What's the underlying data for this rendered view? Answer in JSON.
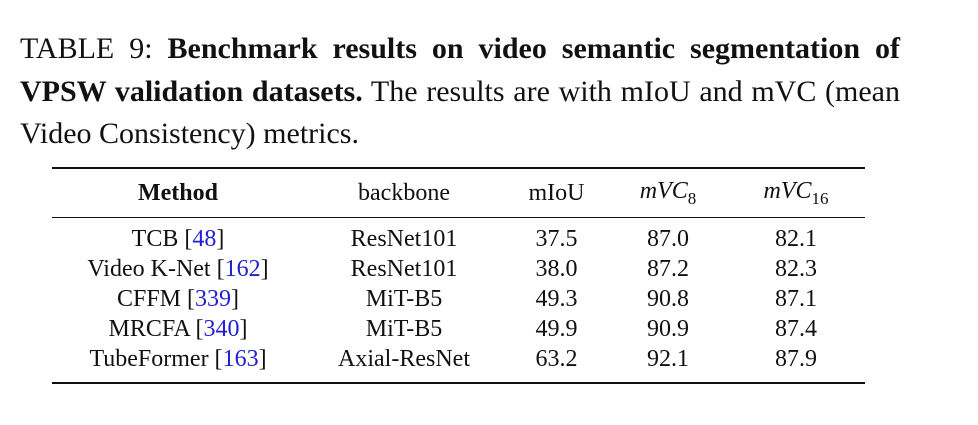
{
  "caption": {
    "label": "TABLE 9: ",
    "bold": "Benchmark results on video semantic segmen­tation of VPSW validation datasets.",
    "rest": " The results are with mIoU and mVC (mean Video Consistency) metrics."
  },
  "table": {
    "header": [
      {
        "text": "Method",
        "style": "bold"
      },
      {
        "text": "backbone"
      },
      {
        "text": "mIoU"
      },
      {
        "text": "mVC",
        "sub": "8",
        "style": "math"
      },
      {
        "text": "mVC",
        "sub": "16",
        "style": "math"
      }
    ],
    "rows": [
      [
        [
          {
            "text": "TCB ["
          },
          {
            "text": "48",
            "link": true
          },
          {
            "text": "]"
          }
        ],
        "ResNet101",
        "37.5",
        "87.0",
        "82.1"
      ],
      [
        [
          {
            "text": "Video K-Net ["
          },
          {
            "text": "162",
            "link": true
          },
          {
            "text": "]"
          }
        ],
        "ResNet101",
        "38.0",
        "87.2",
        "82.3"
      ],
      [
        [
          {
            "text": "CFFM ["
          },
          {
            "text": "339",
            "link": true
          },
          {
            "text": "]"
          }
        ],
        "MiT-B5",
        "49.3",
        "90.8",
        "87.1"
      ],
      [
        [
          {
            "text": "MRCFA ["
          },
          {
            "text": "340",
            "link": true
          },
          {
            "text": "]"
          }
        ],
        "MiT-B5",
        "49.9",
        "90.9",
        "87.4"
      ],
      [
        [
          {
            "text": "TubeFormer ["
          },
          {
            "text": "163",
            "link": true
          },
          {
            "text": "]"
          }
        ],
        "Axial-ResNet",
        "63.2",
        "92.1",
        "87.9"
      ]
    ]
  }
}
